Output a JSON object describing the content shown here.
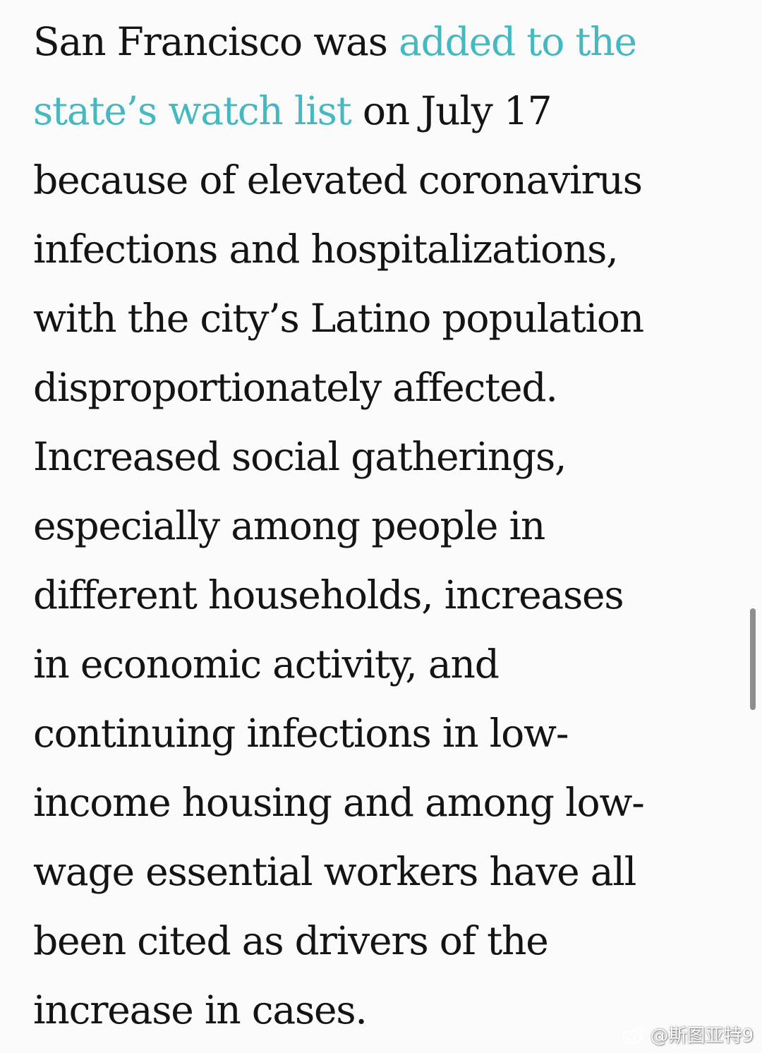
{
  "article": {
    "lines": [
      {
        "before": "San Francisco was ",
        "link": "added to the",
        "after": ""
      },
      {
        "before": "",
        "link": "state’s watch list",
        "after": " on July 17"
      },
      {
        "before": "because of elevated coronavirus",
        "link": "",
        "after": ""
      },
      {
        "before": "infections and hospitalizations,",
        "link": "",
        "after": ""
      },
      {
        "before": "with the city’s Latino population",
        "link": "",
        "after": ""
      },
      {
        "before": "disproportionately affected.",
        "link": "",
        "after": ""
      },
      {
        "before": "Increased social gatherings,",
        "link": "",
        "after": ""
      },
      {
        "before": "especially among people in",
        "link": "",
        "after": ""
      },
      {
        "before": "different households, increases",
        "link": "",
        "after": ""
      },
      {
        "before": "in economic activity, and",
        "link": "",
        "after": ""
      },
      {
        "before": "continuing infections in low-",
        "link": "",
        "after": ""
      },
      {
        "before": "income housing and among low-",
        "link": "",
        "after": ""
      },
      {
        "before": "wage essential workers have all",
        "link": "",
        "after": ""
      },
      {
        "before": "been cited as drivers of the",
        "link": "",
        "after": ""
      },
      {
        "before": "increase in cases.",
        "link": "",
        "after": ""
      }
    ]
  },
  "watermark": {
    "text": "@斯图亚特9",
    "icon": "weibo-icon"
  },
  "colors": {
    "text": "#141414",
    "link": "#45b8c0",
    "background": "#fbfbfb",
    "scrollbar": "#8e8e8e"
  }
}
